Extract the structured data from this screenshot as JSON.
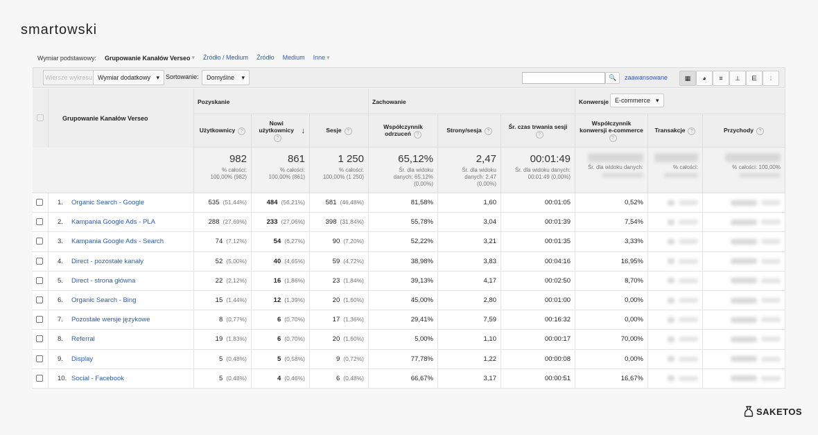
{
  "header": {
    "logo": "smartowski",
    "brand": "SAKETOS"
  },
  "dimension_bar": {
    "label": "Wymiar podstawowy:",
    "active": "Grupowanie Kanałów Verseo",
    "links": [
      "Źródło / Medium",
      "Źródło",
      "Medium",
      "Inne"
    ]
  },
  "toolbar": {
    "plot_rows": "Wiersze wykresu",
    "secondary": "Wymiar dodatkowy",
    "sort_label": "Sortowanie:",
    "sort": "Domyślne",
    "advanced": "zaawansowane"
  },
  "table": {
    "dimension_header": "Grupowanie Kanałów Verseo",
    "groups": [
      "Pozyskanie",
      "Zachowanie",
      "Konwersje"
    ],
    "conversion_select": "E-commerce",
    "columns": [
      "Użytkownicy",
      "Nowi użytkownicy",
      "Sesje",
      "Współczynnik odrzuceń",
      "Strony/sesja",
      "Śr. czas trwania sesji",
      "Współczynnik konwersji e-commerce",
      "Transakcje",
      "Przychody"
    ],
    "totals": [
      {
        "value": "982",
        "note": [
          "% całości:",
          "100,00% (982)"
        ]
      },
      {
        "value": "861",
        "note": [
          "% całości:",
          "100,00% (861)"
        ]
      },
      {
        "value": "1 250",
        "note": [
          "% całości:",
          "100,00% (1 250)"
        ]
      },
      {
        "value": "65,12%",
        "note": [
          "Śr. dla widoku",
          "danych: 65,12%",
          "(0,00%)"
        ]
      },
      {
        "value": "2,47",
        "note": [
          "Śr. dla widoku",
          "danych: 2,47",
          "(0,00%)"
        ]
      },
      {
        "value": "00:01:49",
        "note": [
          "Śr. dla widoku danych:",
          "00:01:49 (0,00%)"
        ]
      },
      {
        "note": [
          "Śr. dla widoku danych:"
        ]
      },
      {
        "note": [
          "% całości:"
        ]
      },
      {
        "note": [
          "% całości: 100,00%"
        ]
      }
    ],
    "rows": [
      [
        "1.",
        "Organic Search - Google",
        "535",
        "(51,44%)",
        "484",
        "(56,21%)",
        "581",
        "(46,48%)",
        "81,58%",
        "1,60",
        "00:01:05",
        "0,52%"
      ],
      [
        "2.",
        "Kampania Google Ads - PLA",
        "288",
        "(27,69%)",
        "233",
        "(27,06%)",
        "398",
        "(31,84%)",
        "55,78%",
        "3,04",
        "00:01:39",
        "7,54%"
      ],
      [
        "3.",
        "Kampania Google Ads - Search",
        "74",
        "(7,12%)",
        "54",
        "(6,27%)",
        "90",
        "(7,20%)",
        "52,22%",
        "3,21",
        "00:01:35",
        "3,33%"
      ],
      [
        "4.",
        "Direct - pozostałe kanały",
        "52",
        "(5,00%)",
        "40",
        "(4,65%)",
        "59",
        "(4,72%)",
        "38,98%",
        "3,83",
        "00:04:16",
        "16,95%"
      ],
      [
        "5.",
        "Direct - strona główna",
        "22",
        "(2,12%)",
        "16",
        "(1,86%)",
        "23",
        "(1,84%)",
        "39,13%",
        "4,17",
        "00:02:50",
        "8,70%"
      ],
      [
        "6.",
        "Organic Search - Bing",
        "15",
        "(1,44%)",
        "12",
        "(1,39%)",
        "20",
        "(1,60%)",
        "45,00%",
        "2,80",
        "00:01:00",
        "0,00%"
      ],
      [
        "7.",
        "Pozostałe wersje językowe",
        "8",
        "(0,77%)",
        "6",
        "(0,70%)",
        "17",
        "(1,36%)",
        "29,41%",
        "7,59",
        "00:16:32",
        "0,00%"
      ],
      [
        "8.",
        "Referral",
        "19",
        "(1,83%)",
        "6",
        "(0,70%)",
        "20",
        "(1,60%)",
        "5,00%",
        "1,10",
        "00:00:17",
        "70,00%"
      ],
      [
        "9.",
        "Display",
        "5",
        "(0,48%)",
        "5",
        "(0,58%)",
        "9",
        "(0,72%)",
        "77,78%",
        "1,22",
        "00:00:08",
        "0,00%"
      ],
      [
        "10.",
        "Social - Facebook",
        "5",
        "(0,48%)",
        "4",
        "(0,46%)",
        "6",
        "(0,48%)",
        "66,67%",
        "3,17",
        "00:00:51",
        "16,67%"
      ]
    ]
  }
}
